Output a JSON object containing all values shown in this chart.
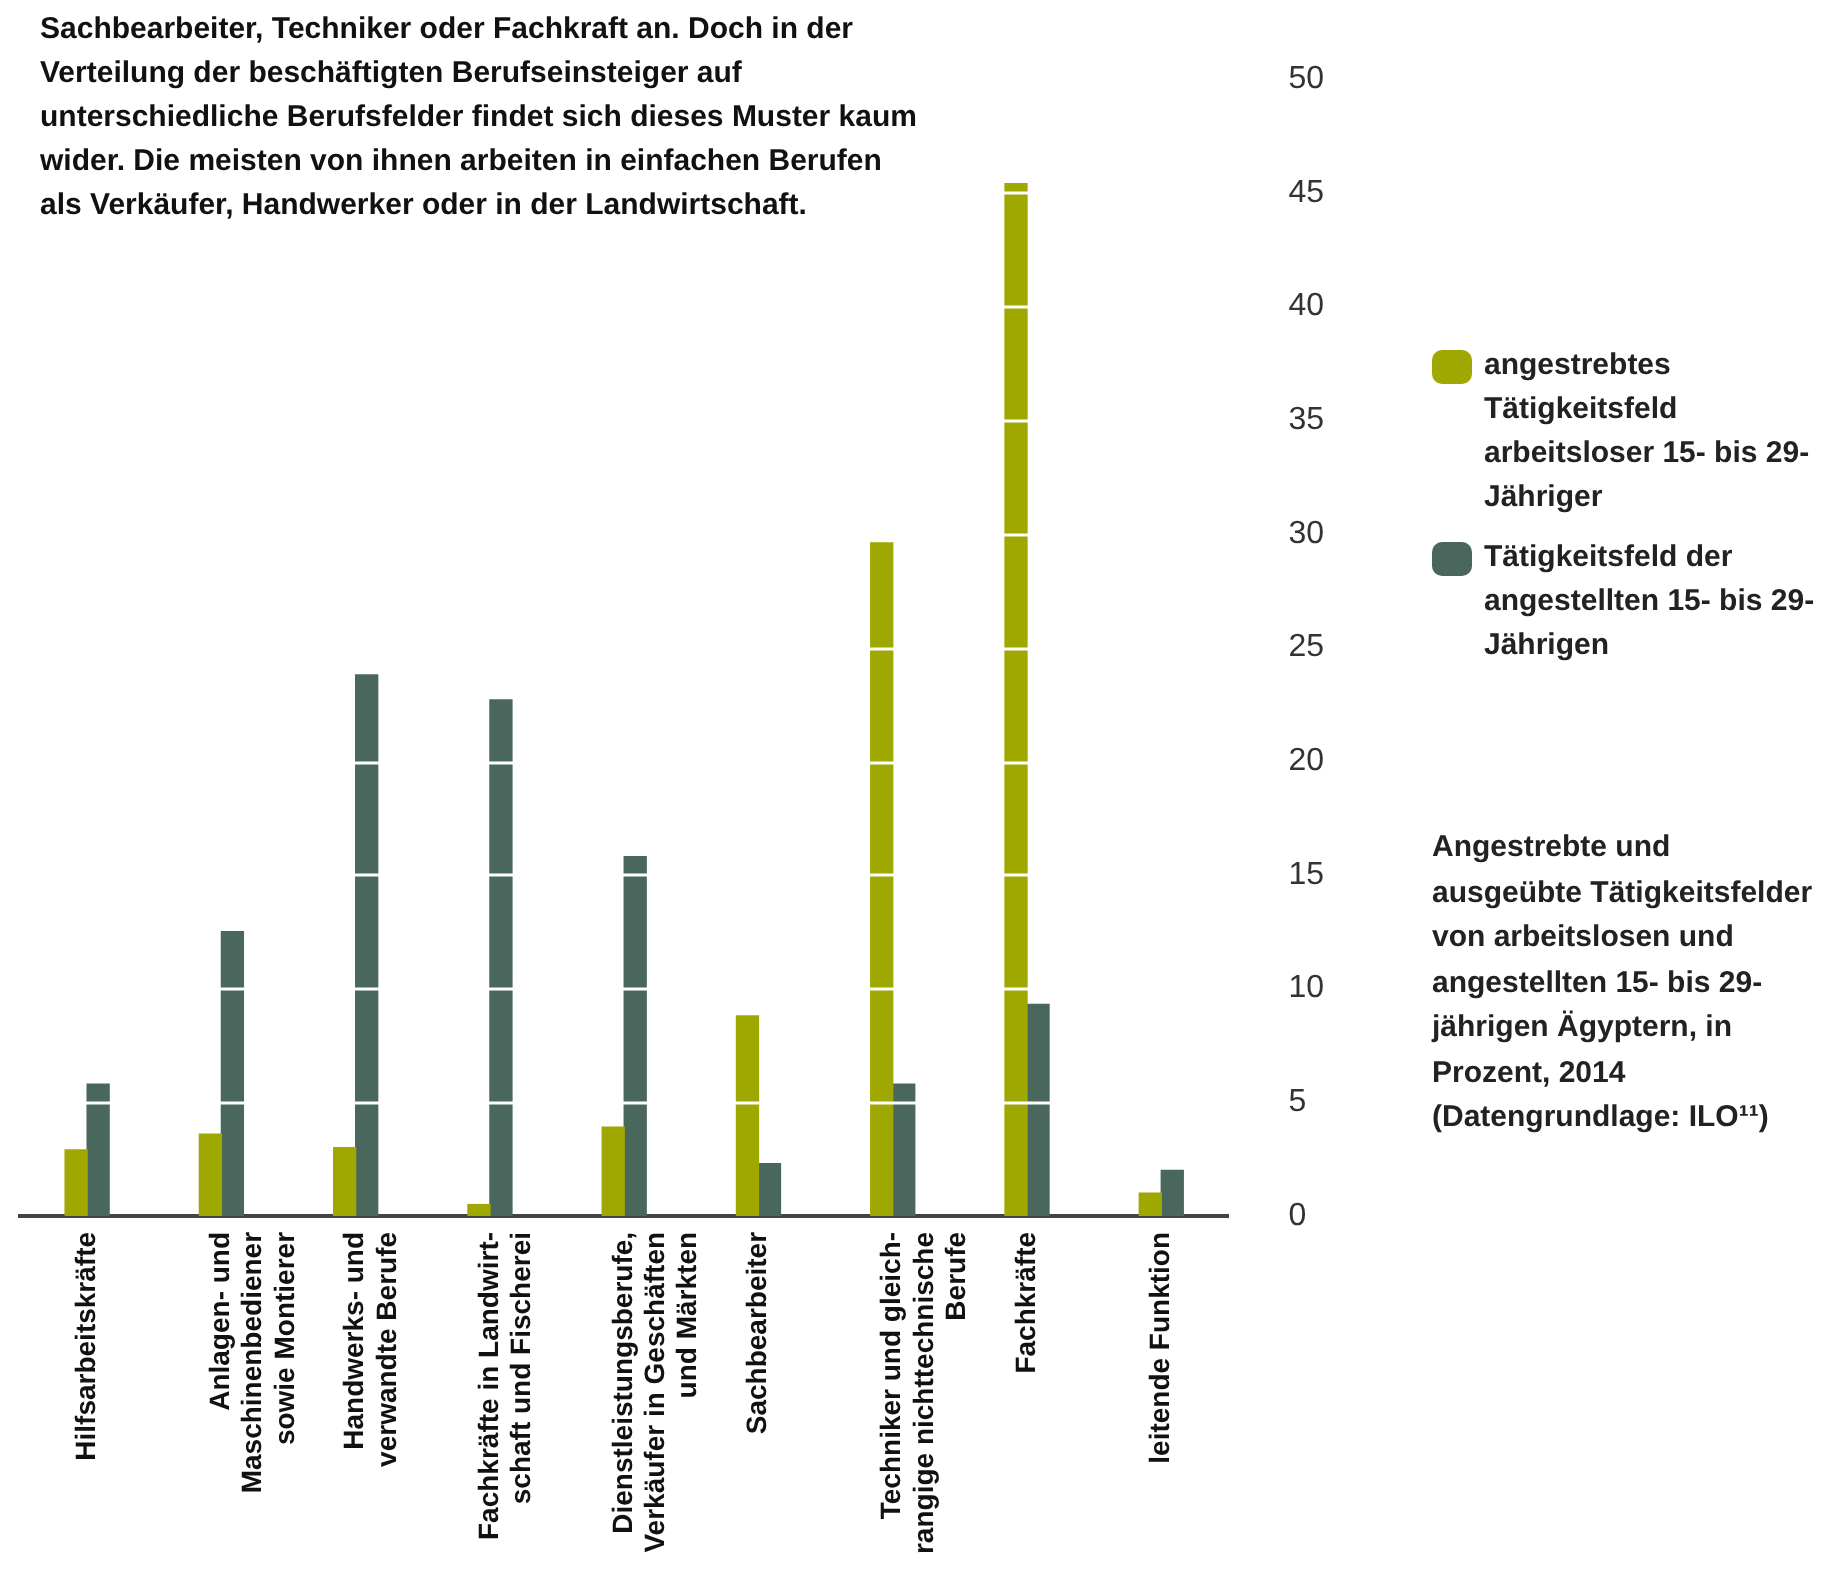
{
  "chart_data": {
    "type": "bar",
    "title": "Angestrebte und ausgeübte Tätigkeitsfelder von arbeitslosen und angestellten 15- bis 29-jährigen Ägyptern, in Prozent, 2014 (Datengrundlage: ILO¹¹)",
    "annotations": [
      "Sachbearbeiter, Techniker oder Fachkraft an. Doch in der Verteilung der beschäftigten Berufseinsteiger auf unterschiedliche Berufsfelder findet sich dieses Muster kaum wider. Die meisten von ihnen arbeiten in einfachen Berufen als Verkäufer, Handwerker oder in der Landwirtschaft."
    ],
    "categories": [
      "Hilfsarbeitskräfte",
      "Anlagen- und\nMaschinenbediener\nsowie Montierer",
      "Handwerks- und\nverwandte Berufe",
      "Fachkräfte in Landwirt-\nschaft und Fischerei",
      "Dienstleistungsberufe,\nVerkäufer in Geschäften\nund Märkten",
      "Sachbearbeiter",
      "Techniker und gleich-\nrangige nichttechnische\nBerufe",
      "Fachkräfte",
      "leitende Funktion"
    ],
    "series": [
      {
        "name": "angestrebtes Tätigkeitsfeld arbeitsloser 15- bis 29-Jähriger",
        "color": "#9fa800",
        "values": [
          2.9,
          3.6,
          3.0,
          0.5,
          3.9,
          8.8,
          29.6,
          45.4,
          1.0
        ]
      },
      {
        "name": "Tätigkeitsfeld der angestellten 15- bis 29-Jährigen",
        "color": "#4a675e",
        "values": [
          5.8,
          12.5,
          23.8,
          22.7,
          15.8,
          2.3,
          5.8,
          9.3,
          2.0
        ]
      }
    ],
    "ylim": [
      0,
      50
    ],
    "yticks": [
      0,
      5,
      10,
      15,
      20,
      25,
      30,
      35,
      40,
      45,
      50
    ],
    "grid": "y",
    "legend": "right"
  }
}
